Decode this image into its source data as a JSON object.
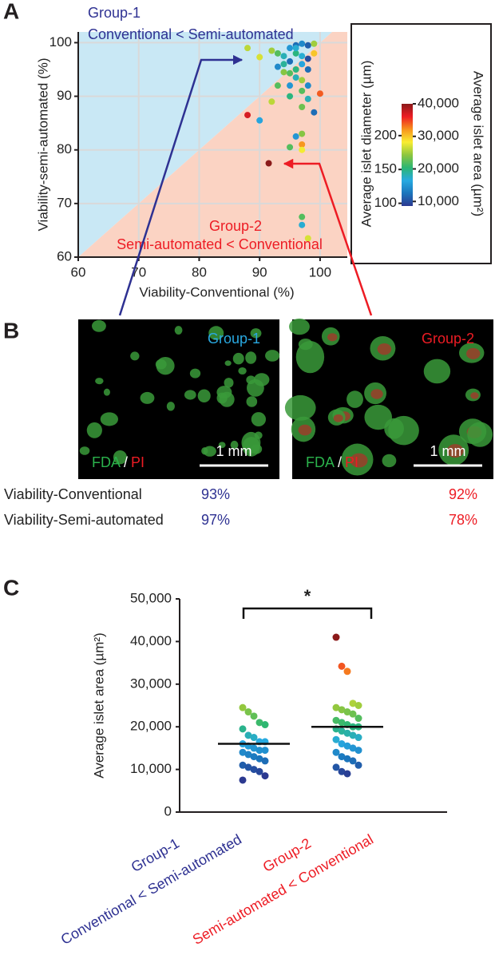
{
  "panel_labels": [
    "A",
    "B",
    "C"
  ],
  "chart_data": [
    {
      "type": "scatter",
      "xlabel": "Viability-Conventional (%)",
      "ylabel": "Viability-semi-automated (%)",
      "xlim": [
        60,
        104.5
      ],
      "ylim": [
        60,
        102
      ],
      "xticks": [
        60,
        70,
        80,
        90,
        100
      ],
      "yticks": [
        60,
        70,
        80,
        90,
        100
      ],
      "grid": true,
      "region_colors": [
        "#c9e8f5",
        "#fbd3c3"
      ],
      "x": [
        88,
        92,
        90,
        93,
        94,
        95,
        96,
        97,
        98,
        99,
        96,
        97,
        95,
        94,
        98,
        99,
        93,
        94,
        95,
        96,
        97,
        98,
        96,
        97,
        95,
        93,
        98,
        97,
        96,
        88,
        90,
        92,
        95,
        97,
        98,
        99,
        100,
        97,
        96,
        95,
        97,
        97,
        91.5,
        97,
        97,
        98
      ],
      "values": [
        99,
        98.5,
        97.3,
        98,
        97.5,
        99,
        99.5,
        99.8,
        99.5,
        99.8,
        98,
        97.5,
        96.5,
        96,
        97,
        98,
        95.5,
        94.5,
        94.3,
        95,
        96,
        95,
        93.5,
        93,
        92,
        92,
        92,
        91,
        99,
        86.5,
        85.5,
        89,
        90,
        88,
        89.5,
        87,
        90.5,
        83,
        82.5,
        80.5,
        81,
        80,
        77.5,
        67.5,
        66,
        63.5
      ],
      "color_values": [
        26000,
        25000,
        27000,
        22000,
        18000,
        15000,
        12000,
        14000,
        11000,
        25000,
        20000,
        17000,
        12000,
        19000,
        10000,
        30000,
        14000,
        24000,
        22000,
        20000,
        16000,
        12000,
        18000,
        25000,
        15000,
        22000,
        14000,
        22000,
        17000,
        37000,
        16000,
        26000,
        20000,
        23000,
        18000,
        12000,
        34000,
        24000,
        15000,
        22000,
        32000,
        28000,
        41000,
        22000,
        17000,
        27000
      ],
      "annotations": [
        {
          "lines": [
            "Group-1",
            "Conventional < Semi-automated"
          ],
          "color": "#2e3192"
        },
        {
          "lines": [
            "Group-2",
            "Semi-automated < Conventional"
          ],
          "color": "#ed1c24"
        }
      ],
      "colorbar": {
        "colors": [
          "#2b3990",
          "#1b75bc",
          "#27aae1",
          "#2bb673",
          "#8dc63f",
          "#f9ed32",
          "#f7941d",
          "#ed1c24",
          "#8b1a1a"
        ],
        "lim": [
          8600,
          40000
        ],
        "ticks": [
          {
            "value": 10000,
            "label": "10,000"
          },
          {
            "value": 20000,
            "label": "20,000"
          },
          {
            "value": 30000,
            "label": "30,000"
          },
          {
            "value": 40000,
            "label": "40,000"
          }
        ],
        "label": "Average islet area (µm²)",
        "second_lim": [
          96,
          247
        ],
        "second_ticks": [
          100,
          150,
          200
        ],
        "second_label": "Average islet diameter (µm)"
      }
    },
    {
      "type": "strip",
      "ylabel": "Average islet area (µm²)",
      "ylim": [
        0,
        50000
      ],
      "yticks": [
        0,
        {
          "value": 10000,
          "label": "10,000"
        },
        {
          "value": 20000,
          "label": "20,000"
        },
        {
          "value": 30000,
          "label": "30,000"
        },
        {
          "value": 40000,
          "label": "40,000"
        },
        {
          "value": 50000,
          "label": "50,000"
        }
      ],
      "categories": [
        "Group-1",
        "Group-2"
      ],
      "category_notes": [
        "Conventional < Semi-automated",
        "Semi-automated < Conventional"
      ],
      "category_colors": [
        "#2e3192",
        "#ed1c24"
      ],
      "groups": [
        [
          24500,
          23500,
          22500,
          21000,
          20500,
          19500,
          18000,
          17500,
          16500,
          16500,
          16000,
          15500,
          15000,
          14500,
          14500,
          14000,
          13500,
          13000,
          12500,
          12000,
          11000,
          10500,
          10000,
          9500,
          8500,
          7500
        ],
        [
          41000,
          34200,
          33000,
          25500,
          25000,
          24500,
          24000,
          23500,
          23000,
          22000,
          21500,
          21000,
          20500,
          20000,
          20000,
          19500,
          19000,
          18500,
          18000,
          17500,
          17000,
          16000,
          15500,
          15000,
          14500,
          14000,
          13000,
          12500,
          12000,
          11000,
          10500,
          9500,
          9000
        ]
      ],
      "means": [
        16000,
        20000
      ],
      "significance": "*"
    }
  ],
  "micrographs": [
    {
      "title": "Group-1",
      "title_color": "#29a8e0",
      "stain": [
        "FDA",
        "/",
        "PI"
      ],
      "scale_bar": "1 mm"
    },
    {
      "title": "Group-2",
      "title_color": "#ed1c24",
      "stain": [
        "FDA",
        "/",
        "PI"
      ],
      "scale_bar": "1 mm"
    }
  ],
  "viability_table": {
    "column_colors": [
      "#2e3192",
      "#ed1c24"
    ],
    "rows": [
      [
        "Viability-Conventional",
        "93%",
        "92%"
      ],
      [
        "Viability-Semi-automated",
        "97%",
        "78%"
      ]
    ]
  }
}
